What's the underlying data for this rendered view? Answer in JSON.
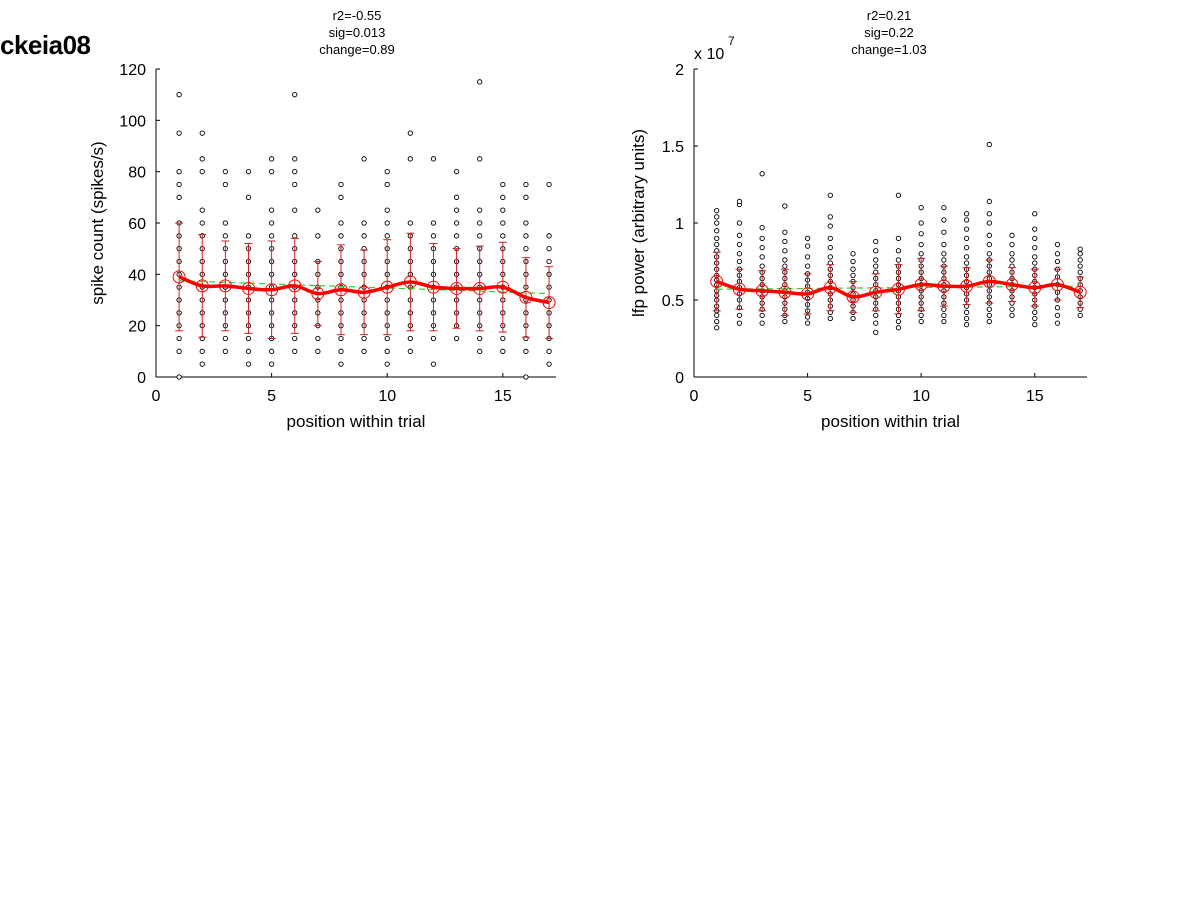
{
  "page": {
    "label": "ckeia08"
  },
  "chart_data": [
    {
      "type": "scatter",
      "stats": [
        "r2=-0.55",
        "sig=0.013",
        "change=0.89"
      ],
      "xlabel": "position within trial",
      "ylabel": "spike count (spikes/s)",
      "xlim": [
        0,
        17.3
      ],
      "ylim": [
        0,
        120
      ],
      "xticks": [
        0,
        5,
        10,
        15
      ],
      "yticks": [
        0,
        20,
        40,
        60,
        80,
        100,
        120
      ],
      "exponent_label": "",
      "grid": false,
      "colors": {
        "points": "#000000",
        "mean": "#ff0000",
        "error": "#cc2222",
        "fit": "#33cc33"
      },
      "trials": [
        {
          "x": 1,
          "values": [
            0,
            10,
            15,
            20,
            25,
            30,
            35,
            40,
            45,
            50,
            55,
            60,
            70,
            75,
            80,
            95,
            110
          ]
        },
        {
          "x": 2,
          "values": [
            5,
            10,
            15,
            20,
            25,
            30,
            35,
            40,
            45,
            50,
            55,
            60,
            65,
            80,
            85,
            95
          ]
        },
        {
          "x": 3,
          "values": [
            10,
            15,
            20,
            25,
            30,
            35,
            40,
            45,
            50,
            55,
            60,
            75,
            80
          ]
        },
        {
          "x": 4,
          "values": [
            5,
            10,
            15,
            20,
            25,
            30,
            35,
            40,
            45,
            50,
            55,
            70,
            80
          ]
        },
        {
          "x": 5,
          "values": [
            5,
            10,
            15,
            20,
            25,
            30,
            35,
            40,
            45,
            50,
            55,
            60,
            65,
            80,
            85
          ]
        },
        {
          "x": 6,
          "values": [
            10,
            15,
            20,
            25,
            30,
            35,
            40,
            45,
            50,
            55,
            65,
            75,
            80,
            85,
            110
          ]
        },
        {
          "x": 7,
          "values": [
            10,
            15,
            20,
            25,
            30,
            35,
            40,
            45,
            55,
            65
          ]
        },
        {
          "x": 8,
          "values": [
            5,
            10,
            15,
            20,
            25,
            30,
            35,
            40,
            45,
            50,
            55,
            60,
            70,
            75
          ]
        },
        {
          "x": 9,
          "values": [
            10,
            15,
            20,
            25,
            30,
            35,
            40,
            45,
            50,
            55,
            60,
            85
          ]
        },
        {
          "x": 10,
          "values": [
            5,
            10,
            15,
            20,
            25,
            30,
            35,
            40,
            45,
            50,
            55,
            60,
            65,
            75,
            80
          ]
        },
        {
          "x": 11,
          "values": [
            10,
            15,
            20,
            25,
            30,
            35,
            40,
            45,
            50,
            55,
            60,
            85,
            95
          ]
        },
        {
          "x": 12,
          "values": [
            5,
            15,
            20,
            25,
            30,
            35,
            40,
            45,
            50,
            55,
            60,
            85
          ]
        },
        {
          "x": 13,
          "values": [
            15,
            20,
            25,
            30,
            35,
            40,
            45,
            50,
            55,
            60,
            65,
            70,
            80
          ]
        },
        {
          "x": 14,
          "values": [
            10,
            15,
            20,
            25,
            30,
            35,
            40,
            45,
            50,
            55,
            60,
            65,
            85,
            115
          ]
        },
        {
          "x": 15,
          "values": [
            10,
            15,
            20,
            25,
            30,
            35,
            40,
            45,
            50,
            55,
            60,
            65,
            70,
            75
          ]
        },
        {
          "x": 16,
          "values": [
            0,
            10,
            15,
            20,
            25,
            30,
            35,
            40,
            45,
            50,
            55,
            60,
            70,
            75
          ]
        },
        {
          "x": 17,
          "values": [
            5,
            10,
            15,
            20,
            25,
            30,
            35,
            40,
            45,
            50,
            55,
            75
          ]
        }
      ],
      "means": [
        39,
        35.5,
        35.5,
        34.5,
        34,
        35.5,
        32.5,
        34,
        33,
        35,
        37,
        35,
        34.5,
        34.5,
        35,
        31,
        29
      ],
      "errors": [
        21,
        20,
        17.5,
        17.5,
        19,
        18.5,
        12.5,
        17.5,
        16.5,
        18.5,
        19,
        17,
        15.5,
        16.5,
        17.5,
        15.5,
        14
      ],
      "fit": {
        "x": [
          1,
          17
        ],
        "y": [
          37.5,
          32.5
        ]
      }
    },
    {
      "type": "scatter",
      "stats": [
        "r2=0.21",
        "sig=0.22",
        "change=1.03"
      ],
      "xlabel": "position within trial",
      "ylabel": "lfp power (arbitrary units)",
      "xlim": [
        0,
        17.3
      ],
      "ylim": [
        0,
        2
      ],
      "xticks": [
        0,
        5,
        10,
        15
      ],
      "yticks": [
        0,
        0.5,
        1,
        1.5,
        2
      ],
      "exponent_label": "x 10",
      "exponent_power": "7",
      "grid": false,
      "colors": {
        "points": "#000000",
        "mean": "#ff0000",
        "error": "#cc2222",
        "fit": "#33cc33"
      },
      "trials": [
        {
          "x": 1,
          "values": [
            0.32,
            0.36,
            0.4,
            0.43,
            0.46,
            0.5,
            0.53,
            0.56,
            0.6,
            0.63,
            0.66,
            0.7,
            0.74,
            0.78,
            0.82,
            0.86,
            0.9,
            0.95,
            1.0,
            1.04,
            1.08
          ]
        },
        {
          "x": 2,
          "values": [
            0.35,
            0.4,
            0.45,
            0.5,
            0.54,
            0.58,
            0.62,
            0.66,
            0.7,
            0.75,
            0.8,
            0.86,
            0.92,
            1.0,
            1.12,
            1.14
          ]
        },
        {
          "x": 3,
          "values": [
            0.35,
            0.4,
            0.44,
            0.48,
            0.52,
            0.56,
            0.6,
            0.64,
            0.68,
            0.72,
            0.78,
            0.84,
            0.9,
            0.97,
            1.32
          ]
        },
        {
          "x": 4,
          "values": [
            0.36,
            0.4,
            0.44,
            0.48,
            0.52,
            0.56,
            0.6,
            0.64,
            0.68,
            0.72,
            0.76,
            0.82,
            0.88,
            0.94,
            1.11
          ]
        },
        {
          "x": 5,
          "values": [
            0.35,
            0.39,
            0.43,
            0.47,
            0.51,
            0.55,
            0.59,
            0.63,
            0.67,
            0.72,
            0.78,
            0.85,
            0.9
          ]
        },
        {
          "x": 6,
          "values": [
            0.38,
            0.42,
            0.46,
            0.5,
            0.54,
            0.58,
            0.62,
            0.66,
            0.7,
            0.74,
            0.78,
            0.84,
            0.9,
            0.98,
            1.04,
            1.18
          ]
        },
        {
          "x": 7,
          "values": [
            0.38,
            0.42,
            0.46,
            0.5,
            0.54,
            0.58,
            0.62,
            0.66,
            0.7,
            0.75,
            0.8
          ]
        },
        {
          "x": 8,
          "values": [
            0.29,
            0.35,
            0.4,
            0.44,
            0.48,
            0.52,
            0.56,
            0.6,
            0.64,
            0.68,
            0.72,
            0.76,
            0.82,
            0.88
          ]
        },
        {
          "x": 9,
          "values": [
            0.32,
            0.36,
            0.4,
            0.44,
            0.48,
            0.52,
            0.56,
            0.6,
            0.64,
            0.68,
            0.72,
            0.76,
            0.82,
            0.9,
            1.18
          ]
        },
        {
          "x": 10,
          "values": [
            0.36,
            0.4,
            0.44,
            0.48,
            0.52,
            0.56,
            0.6,
            0.64,
            0.68,
            0.72,
            0.76,
            0.8,
            0.86,
            0.93,
            1.0,
            1.1
          ]
        },
        {
          "x": 11,
          "values": [
            0.36,
            0.4,
            0.44,
            0.48,
            0.52,
            0.56,
            0.6,
            0.64,
            0.68,
            0.72,
            0.76,
            0.8,
            0.86,
            0.94,
            1.02,
            1.1
          ]
        },
        {
          "x": 12,
          "values": [
            0.34,
            0.38,
            0.42,
            0.46,
            0.5,
            0.54,
            0.58,
            0.62,
            0.66,
            0.7,
            0.74,
            0.78,
            0.84,
            0.9,
            0.96,
            1.02,
            1.06
          ]
        },
        {
          "x": 13,
          "values": [
            0.36,
            0.4,
            0.44,
            0.48,
            0.52,
            0.56,
            0.6,
            0.64,
            0.68,
            0.72,
            0.76,
            0.8,
            0.86,
            0.92,
            1.0,
            1.06,
            1.14,
            1.51
          ]
        },
        {
          "x": 14,
          "values": [
            0.4,
            0.44,
            0.48,
            0.52,
            0.56,
            0.6,
            0.64,
            0.68,
            0.72,
            0.76,
            0.8,
            0.86,
            0.92
          ]
        },
        {
          "x": 15,
          "values": [
            0.34,
            0.38,
            0.42,
            0.46,
            0.5,
            0.54,
            0.58,
            0.62,
            0.66,
            0.7,
            0.74,
            0.78,
            0.84,
            0.9,
            0.96,
            1.06
          ]
        },
        {
          "x": 16,
          "values": [
            0.35,
            0.4,
            0.45,
            0.5,
            0.55,
            0.6,
            0.65,
            0.7,
            0.75,
            0.8,
            0.86
          ]
        },
        {
          "x": 17,
          "values": [
            0.4,
            0.44,
            0.48,
            0.52,
            0.56,
            0.6,
            0.64,
            0.68,
            0.72,
            0.76,
            0.8,
            0.83
          ]
        }
      ],
      "means": [
        0.62,
        0.57,
        0.56,
        0.55,
        0.54,
        0.58,
        0.52,
        0.55,
        0.57,
        0.6,
        0.59,
        0.59,
        0.62,
        0.6,
        0.58,
        0.6,
        0.55
      ],
      "errors": [
        0.19,
        0.13,
        0.13,
        0.15,
        0.13,
        0.15,
        0.1,
        0.12,
        0.16,
        0.17,
        0.13,
        0.12,
        0.14,
        0.11,
        0.12,
        0.1,
        0.1
      ],
      "fit": {
        "x": [
          1,
          17
        ],
        "y": [
          0.57,
          0.59
        ]
      }
    }
  ]
}
